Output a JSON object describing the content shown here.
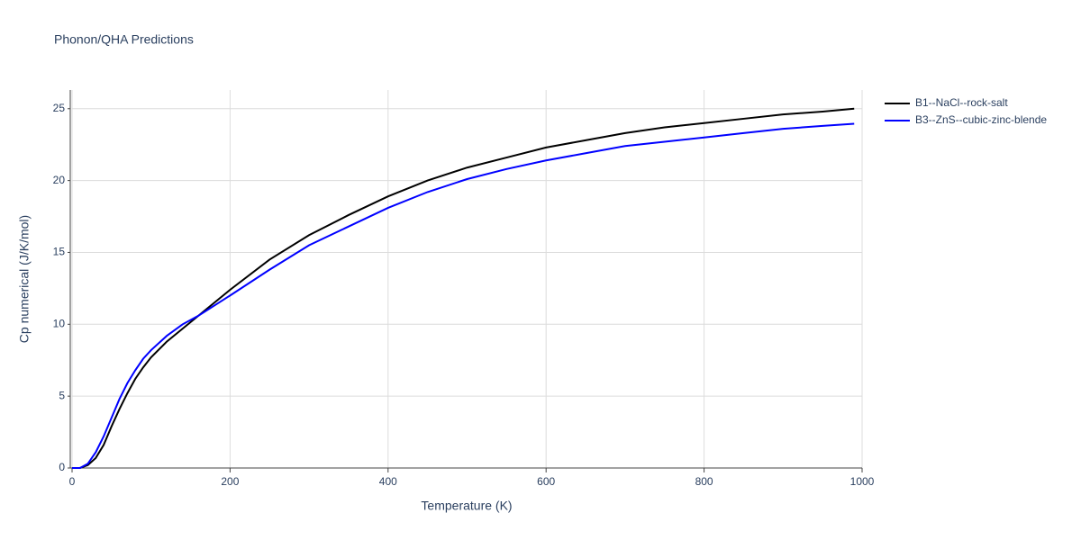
{
  "chart_data": {
    "type": "line",
    "title": "Phonon/QHA Predictions",
    "xlabel": "Temperature (K)",
    "ylabel": "Cp numerical (J/K/mol)",
    "xlim": [
      0,
      1000
    ],
    "xticks": [
      0,
      200,
      400,
      600,
      800,
      1000
    ],
    "ylim": [
      0,
      26.3
    ],
    "yticks": [
      0,
      5,
      10,
      15,
      20,
      25
    ],
    "grid": true,
    "x": [
      0,
      10,
      20,
      30,
      40,
      50,
      60,
      70,
      80,
      90,
      100,
      120,
      140,
      160,
      180,
      200,
      250,
      300,
      350,
      400,
      450,
      500,
      550,
      600,
      650,
      700,
      750,
      800,
      850,
      900,
      950,
      990
    ],
    "series": [
      {
        "name": "B1--NaCl--rock-salt",
        "color": "#000000",
        "values": [
          0,
          0,
          0.2,
          0.7,
          1.6,
          2.9,
          4.1,
          5.2,
          6.2,
          7.0,
          7.7,
          8.8,
          9.7,
          10.6,
          11.5,
          12.4,
          14.5,
          16.2,
          17.6,
          18.9,
          20.0,
          20.9,
          21.6,
          22.3,
          22.8,
          23.3,
          23.7,
          24.0,
          24.3,
          24.6,
          24.8,
          25.0
        ]
      },
      {
        "name": "B3--ZnS--cubic-zinc-blende",
        "color": "#0000ff",
        "values": [
          0,
          0,
          0.3,
          1.1,
          2.2,
          3.5,
          4.8,
          5.9,
          6.8,
          7.6,
          8.2,
          9.2,
          10.0,
          10.6,
          11.3,
          12.0,
          13.8,
          15.5,
          16.8,
          18.1,
          19.2,
          20.1,
          20.8,
          21.4,
          21.9,
          22.4,
          22.7,
          23.0,
          23.3,
          23.6,
          23.8,
          23.95
        ]
      }
    ]
  }
}
